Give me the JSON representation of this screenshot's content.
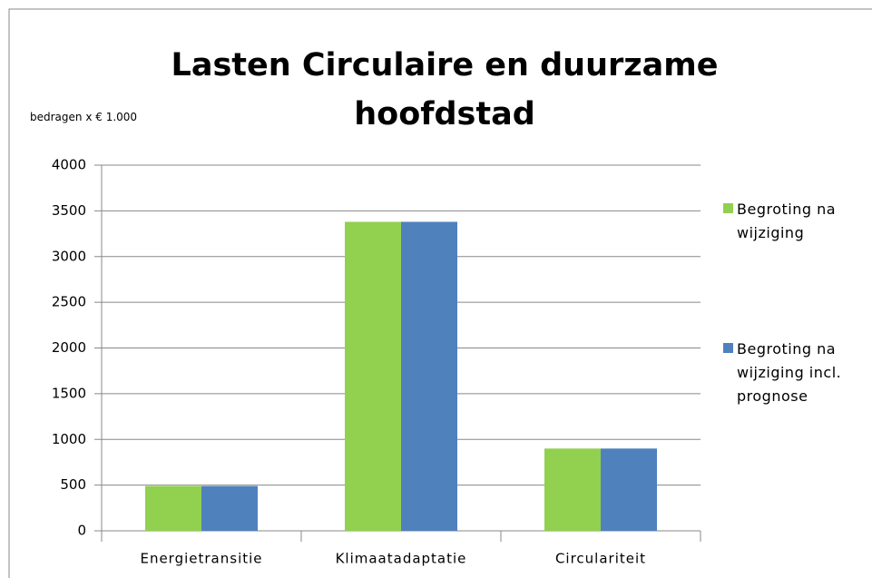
{
  "chart_data": {
    "type": "bar",
    "title": "Lasten Circulaire en duurzame hoofdstad",
    "subtitle": "bedragen x € 1.000",
    "categories": [
      "Energietransitie",
      "Klimaatadaptatie",
      "Circulariteit"
    ],
    "series": [
      {
        "name": "Begroting na wijziging",
        "color": "#92d050",
        "values": [
          490,
          3380,
          900
        ]
      },
      {
        "name": "Begroting na wijziging incl. prognose",
        "color": "#4f81bd",
        "values": [
          490,
          3380,
          900
        ]
      }
    ],
    "ylim": [
      0,
      4000
    ],
    "yticks": [
      0,
      500,
      1000,
      1500,
      2000,
      2500,
      3000,
      3500,
      4000
    ],
    "grid": true,
    "legend": "right"
  }
}
